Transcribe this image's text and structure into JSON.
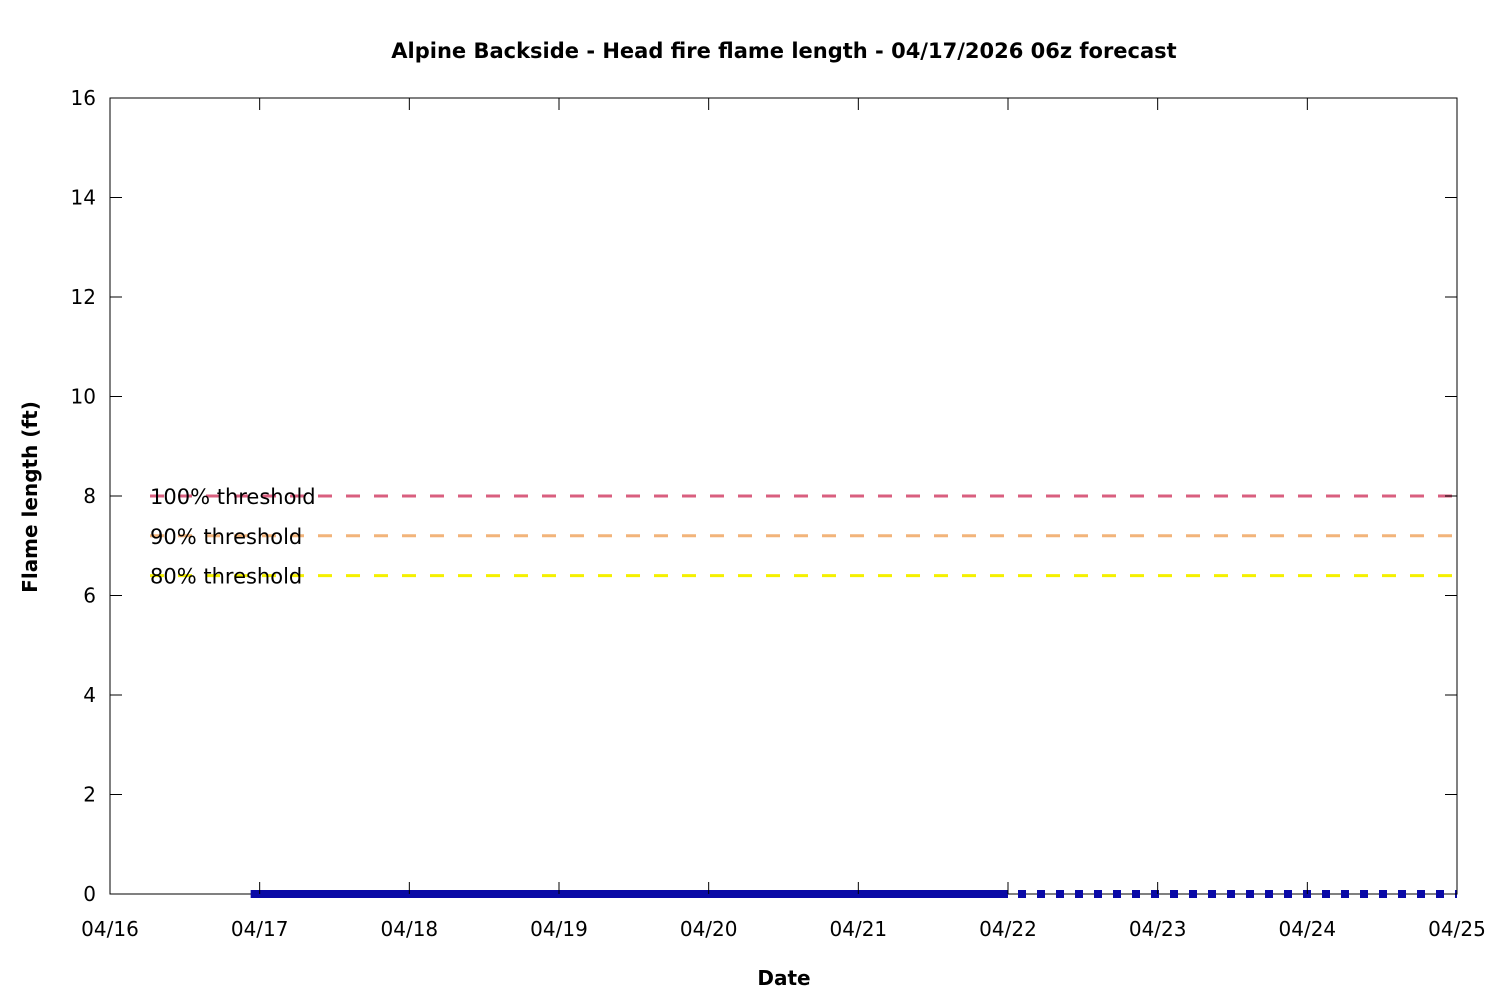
{
  "chart_data": {
    "type": "line",
    "title": "Alpine Backside - Head fire flame length - 04/17/2026 06z forecast",
    "xlabel": "Date",
    "ylabel": "Flame length (ft)",
    "xlim": [
      "04/16",
      "04/25"
    ],
    "ylim": [
      0,
      16
    ],
    "x_ticks": [
      "04/16",
      "04/17",
      "04/18",
      "04/19",
      "04/20",
      "04/21",
      "04/22",
      "04/23",
      "04/24",
      "04/25"
    ],
    "y_ticks": [
      0,
      2,
      4,
      6,
      8,
      10,
      12,
      14,
      16
    ],
    "grid": false,
    "thresholds": [
      {
        "name": "100% threshold",
        "value": 8.0,
        "color": "#d95f7f",
        "style": "dashed"
      },
      {
        "name": "90% threshold",
        "value": 7.2,
        "color": "#f2b47a",
        "style": "dashed"
      },
      {
        "name": "80% threshold",
        "value": 6.4,
        "color": "#f5f000",
        "style": "dashed"
      }
    ],
    "series": [
      {
        "x_start": "04/17 00z",
        "x_end": "04/22 00z",
        "value": 0,
        "color": "#0a0aa6",
        "style": "solid"
      },
      {
        "x_start": "04/22 00z",
        "x_end": "04/25 00z",
        "value": 0,
        "color": "#0a0aa6",
        "style": "dotted"
      }
    ]
  }
}
